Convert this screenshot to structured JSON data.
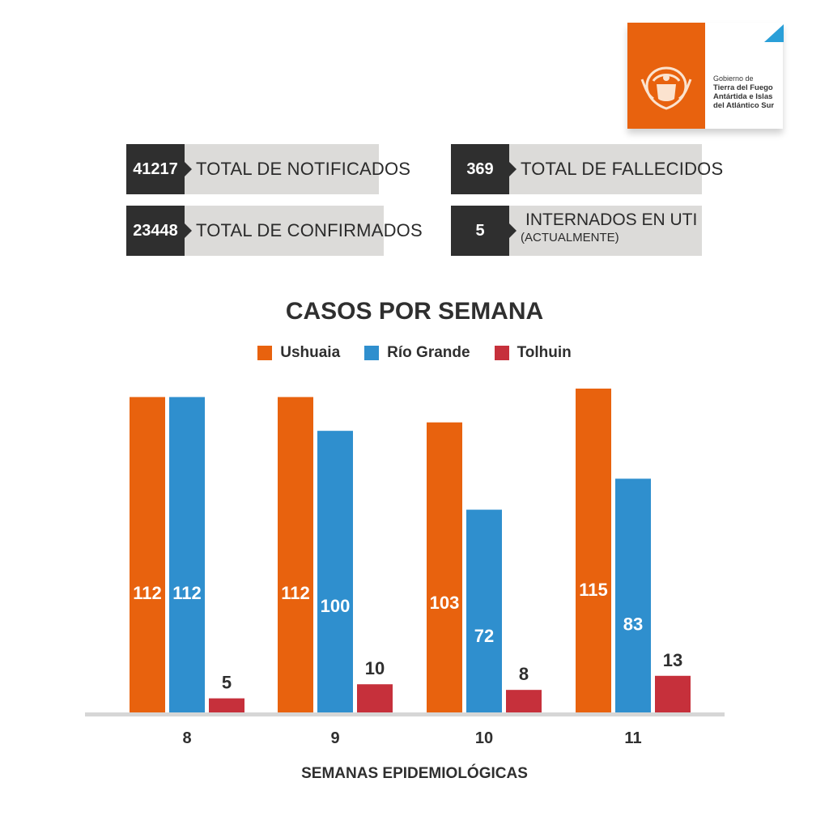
{
  "logo": {
    "line1": "Gobierno de",
    "line2": "Tierra del Fuego",
    "line3": "Antártida e Islas",
    "line4": "del Atlántico Sur"
  },
  "stats": {
    "notificados": {
      "value": "41217",
      "label": "TOTAL DE NOTIFICADOS"
    },
    "confirmados": {
      "value": "23448",
      "label": "TOTAL DE CONFIRMADOS"
    },
    "fallecidos": {
      "value": "369",
      "label": "TOTAL DE FALLECIDOS"
    },
    "uti": {
      "value": "5",
      "label": "INTERNADOS EN UTI",
      "sublabel": "(ACTUALMENTE)"
    }
  },
  "colors": {
    "ushuaia": "#e8620e",
    "rio_grande": "#2f8fce",
    "tolhuin": "#c6303b"
  },
  "chart_data": {
    "type": "bar",
    "title": "CASOS POR SEMANA",
    "xlabel": "SEMANAS EPIDEMIOLÓGICAS",
    "ylabel": "",
    "categories": [
      "8",
      "9",
      "10",
      "11"
    ],
    "series": [
      {
        "name": "Ushuaia",
        "values": [
          112,
          112,
          103,
          115
        ]
      },
      {
        "name": "Río Grande",
        "values": [
          112,
          100,
          72,
          83
        ]
      },
      {
        "name": "Tolhuin",
        "values": [
          5,
          10,
          8,
          13
        ]
      }
    ],
    "ylim": [
      0,
      115
    ]
  }
}
